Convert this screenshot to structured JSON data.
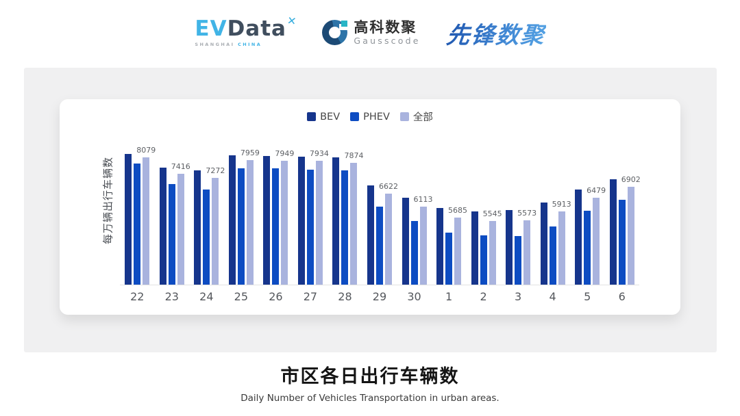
{
  "header": {
    "evdata": {
      "ev": "EV",
      "data": "Data",
      "mark": "x-cross-mark",
      "tagline_left": "SHANGHAI",
      "tagline_right": "CHINA"
    },
    "gausscode": {
      "cn": "高科数聚",
      "en": "Gausscode"
    },
    "pioneer": {
      "text": "先锋数聚"
    }
  },
  "colors": {
    "bev": "#16358c",
    "phev": "#0d4cc2",
    "all": "#a9b3de",
    "panel_bg": "#f0f0f1",
    "axis_line": "#e2e2e2",
    "evdata_cyan": "#41b4e6",
    "evdata_slate": "#404e5e",
    "pioneer_blue": "#2e6ec9"
  },
  "chart_data": {
    "type": "bar",
    "title": "市区各日出行车辆数",
    "title_en": "Daily Number of Vehicles Transportation in urban areas.",
    "ylabel": "每万辆出行车辆数",
    "xlabel": "",
    "categories": [
      "22",
      "23",
      "24",
      "25",
      "26",
      "27",
      "28",
      "29",
      "30",
      "1",
      "2",
      "3",
      "4",
      "5",
      "6"
    ],
    "series": [
      {
        "name": "BEV",
        "color": "#16358c",
        "values": [
          8230,
          7680,
          7570,
          8160,
          8140,
          8110,
          8070,
          6950,
          6480,
          6070,
          5930,
          5970,
          6270,
          6810,
          7215
        ]
      },
      {
        "name": "PHEV",
        "color": "#0d4cc2",
        "values": [
          7845,
          7010,
          6790,
          7650,
          7650,
          7600,
          7575,
          6110,
          5550,
          5070,
          4960,
          4950,
          5330,
          5940,
          6380
        ]
      },
      {
        "name": "全部",
        "color": "#a9b3de",
        "labeled": true,
        "values": [
          8079,
          7416,
          7272,
          7959,
          7949,
          7934,
          7874,
          6622,
          6113,
          5685,
          5545,
          5573,
          5913,
          6479,
          6902
        ]
      }
    ],
    "data_labels": [
      8079,
      7416,
      7272,
      7959,
      7949,
      7934,
      7874,
      6622,
      6113,
      5685,
      5545,
      5573,
      5913,
      6479,
      6902
    ],
    "ylim": [
      3000,
      8900
    ],
    "grid": false,
    "legend_position": "top",
    "y_axis_ticks_visible": false
  },
  "footer": {
    "title": "市区各日出行车辆数",
    "subtitle": "Daily Number of Vehicles Transportation in urban areas."
  }
}
